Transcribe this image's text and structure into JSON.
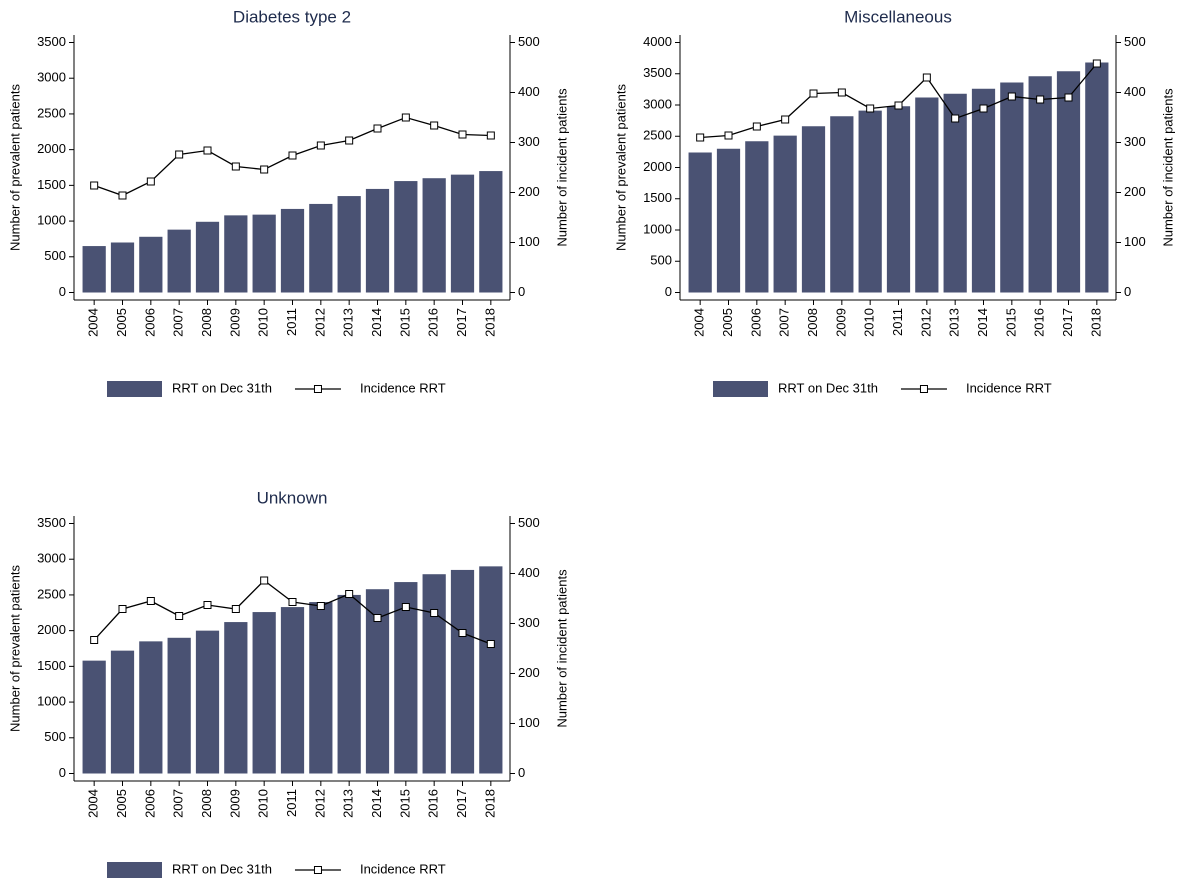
{
  "chart_data": [
    {
      "type": "combo",
      "title": "Diabetes type 2",
      "categories": [
        "2004",
        "2005",
        "2006",
        "2007",
        "2008",
        "2009",
        "2010",
        "2011",
        "2012",
        "2013",
        "2014",
        "2015",
        "2016",
        "2017",
        "2018"
      ],
      "series": [
        {
          "name": "RRT on Dec 31th",
          "type": "bar",
          "color": "#4a5273",
          "values": [
            650,
            700,
            780,
            880,
            990,
            1080,
            1090,
            1170,
            1240,
            1350,
            1450,
            1560,
            1600,
            1650,
            1700
          ]
        },
        {
          "name": "Incidence RRT",
          "type": "line",
          "axis": "y2",
          "color": "#000000",
          "values": [
            214,
            194,
            222,
            276,
            284,
            252,
            246,
            274,
            294,
            304,
            328,
            350,
            334,
            316,
            314
          ]
        }
      ],
      "y_label": "Number of prevalent patients",
      "y2_label": "Number of incident patients",
      "ylim": [
        -105,
        3605
      ],
      "yticks": [
        0,
        500,
        1000,
        1500,
        2000,
        2500,
        3000,
        3500
      ],
      "y2lim": [
        -15,
        515
      ],
      "y2ticks": [
        0,
        100,
        200,
        300,
        400,
        500
      ],
      "legend": "bottom",
      "grid": false
    },
    {
      "type": "combo",
      "title": "Miscellaneous",
      "categories": [
        "2004",
        "2005",
        "2006",
        "2007",
        "2008",
        "2009",
        "2010",
        "2011",
        "2012",
        "2013",
        "2014",
        "2015",
        "2016",
        "2017",
        "2018"
      ],
      "series": [
        {
          "name": "RRT on Dec 31th",
          "type": "bar",
          "color": "#4a5273",
          "values": [
            2240,
            2300,
            2420,
            2510,
            2660,
            2820,
            2910,
            2980,
            3120,
            3180,
            3260,
            3360,
            3460,
            3540,
            3680
          ]
        },
        {
          "name": "Incidence RRT",
          "type": "line",
          "axis": "y2",
          "color": "#000000",
          "values": [
            310,
            314,
            332,
            346,
            398,
            400,
            368,
            374,
            430,
            348,
            368,
            392,
            386,
            390,
            458
          ]
        }
      ],
      "y_label": "Number of prevalent patients",
      "y2_label": "Number of incident patients",
      "ylim": [
        -120,
        4120
      ],
      "yticks": [
        0,
        500,
        1000,
        1500,
        2000,
        2500,
        3000,
        3500,
        4000
      ],
      "y2lim": [
        -15,
        515
      ],
      "y2ticks": [
        0,
        100,
        200,
        300,
        400,
        500
      ],
      "legend": "bottom",
      "grid": false
    },
    {
      "type": "combo",
      "title": "Unknown",
      "categories": [
        "2004",
        "2005",
        "2006",
        "2007",
        "2008",
        "2009",
        "2010",
        "2011",
        "2012",
        "2013",
        "2014",
        "2015",
        "2016",
        "2017",
        "2018"
      ],
      "series": [
        {
          "name": "RRT on Dec 31th",
          "type": "bar",
          "color": "#4a5273",
          "values": [
            1580,
            1720,
            1850,
            1900,
            2000,
            2120,
            2260,
            2330,
            2400,
            2500,
            2580,
            2680,
            2790,
            2850,
            2900
          ]
        },
        {
          "name": "Incidence RRT",
          "type": "line",
          "axis": "y2",
          "color": "#000000",
          "values": [
            267,
            329,
            345,
            315,
            337,
            329,
            386,
            343,
            335,
            359,
            311,
            333,
            321,
            281,
            259
          ]
        }
      ],
      "y_label": "Number of prevalent patients",
      "y2_label": "Number of incident patients",
      "ylim": [
        -105,
        3605
      ],
      "yticks": [
        0,
        500,
        1000,
        1500,
        2000,
        2500,
        3000,
        3500
      ],
      "y2lim": [
        -15,
        515
      ],
      "y2ticks": [
        0,
        100,
        200,
        300,
        400,
        500
      ],
      "legend": "bottom",
      "grid": false
    }
  ]
}
